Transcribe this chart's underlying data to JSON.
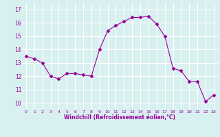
{
  "x": [
    0,
    1,
    2,
    3,
    4,
    5,
    6,
    7,
    8,
    9,
    10,
    11,
    12,
    13,
    14,
    15,
    16,
    17,
    18,
    19,
    20,
    21,
    22,
    23
  ],
  "y": [
    13.5,
    13.3,
    13.0,
    12.0,
    11.8,
    12.2,
    12.2,
    12.1,
    12.0,
    14.0,
    15.4,
    15.8,
    16.1,
    16.4,
    16.4,
    16.5,
    15.9,
    15.0,
    12.6,
    12.4,
    11.6,
    11.6,
    10.1,
    10.6
  ],
  "line_color": "#990099",
  "marker": "D",
  "marker_size": 2.5,
  "bg_color": "#d8f0f0",
  "grid_color": "#ffffff",
  "xlabel": "Windchill (Refroidissement éolien,°C)",
  "xlabel_color": "#990099",
  "yticks": [
    10,
    11,
    12,
    13,
    14,
    15,
    16,
    17
  ],
  "xticks": [
    0,
    1,
    2,
    3,
    4,
    5,
    6,
    7,
    8,
    9,
    10,
    11,
    12,
    13,
    14,
    15,
    16,
    17,
    18,
    19,
    20,
    21,
    22,
    23
  ],
  "ylim": [
    9.5,
    17.5
  ],
  "xlim": [
    -0.5,
    23.5
  ]
}
